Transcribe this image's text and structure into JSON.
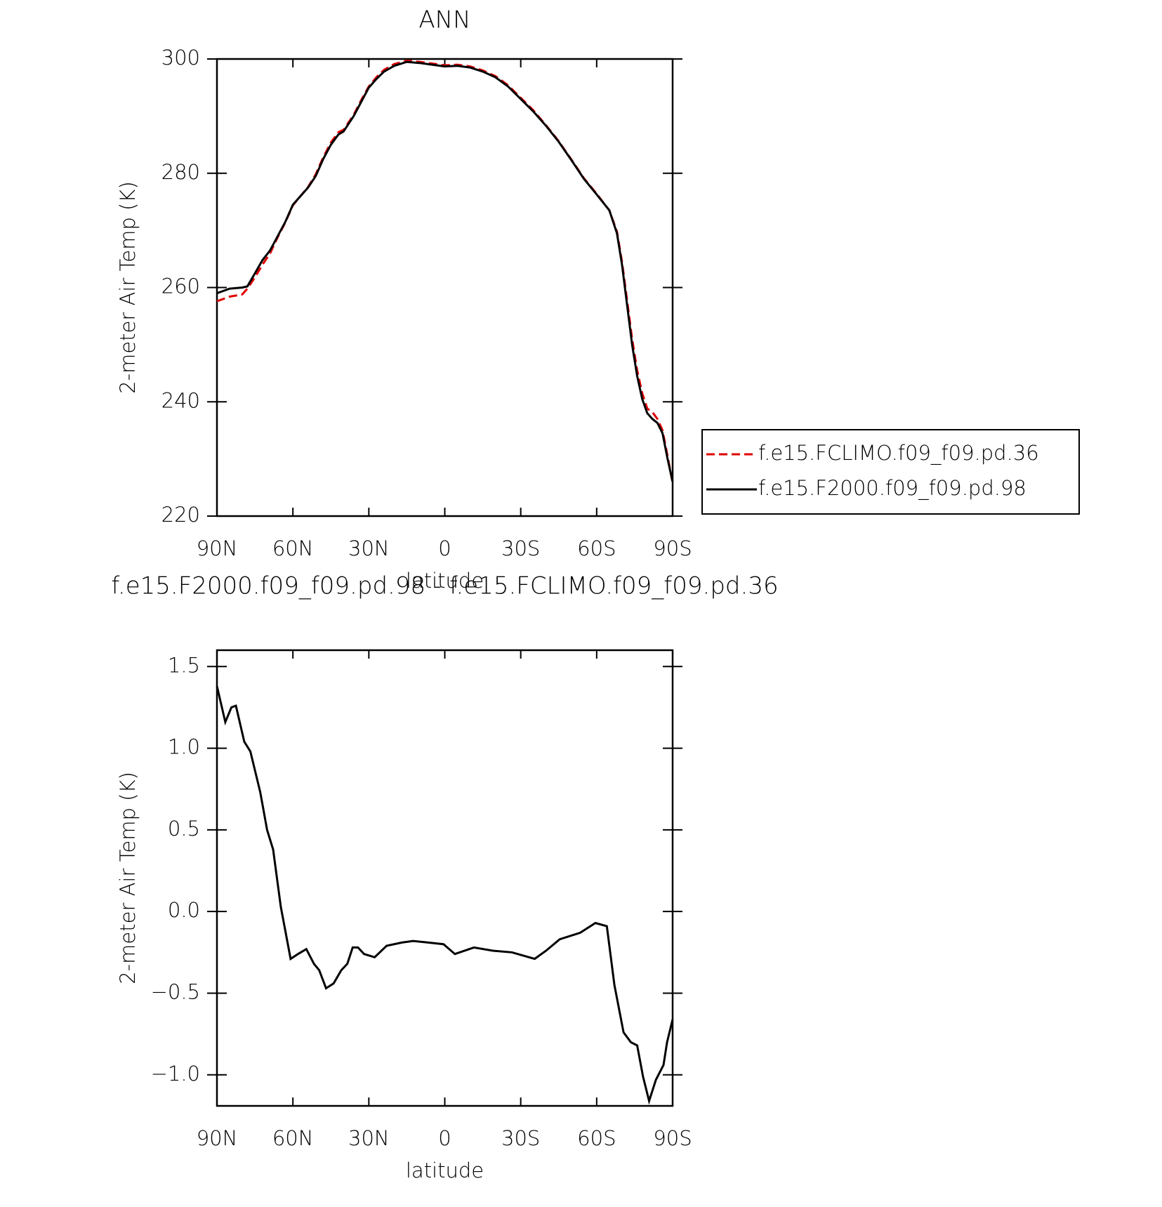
{
  "chart_data": [
    {
      "type": "line",
      "title": "ANN",
      "ylabel": "2-meter Air Temp (K)",
      "xlabel": "latitude",
      "xlim": [
        90,
        -90
      ],
      "xticks": [
        {
          "value": 90,
          "label": "90N"
        },
        {
          "value": 60,
          "label": "60N"
        },
        {
          "value": 30,
          "label": "30N"
        },
        0,
        {
          "value": -30,
          "label": "30S"
        },
        {
          "value": -60,
          "label": "60S"
        },
        {
          "value": -90,
          "label": "90S"
        }
      ],
      "ylim": [
        220,
        300
      ],
      "yticks": [
        220,
        240,
        260,
        280,
        300
      ],
      "legend": "right",
      "x": [
        90,
        85,
        80,
        78,
        75,
        72,
        69,
        66,
        63,
        60,
        57,
        54,
        51,
        48,
        45,
        42,
        40,
        36,
        33,
        30,
        27,
        24,
        20,
        15,
        10,
        5,
        0,
        -5,
        -10,
        -15,
        -20,
        -25,
        -30,
        -35,
        -40,
        -45,
        -50,
        -55,
        -60,
        -65,
        -68,
        -70,
        -72,
        -74,
        -76,
        -78,
        -80,
        -82,
        -84,
        -86,
        -88,
        -90
      ],
      "series": [
        {
          "name": "f.e15.FCLIMO.f09_f09.pd.36",
          "color": "#e00000",
          "line_style": "dashed",
          "values": [
            257.6,
            258.4,
            258.8,
            259.8,
            261.8,
            264,
            266,
            268.8,
            271.4,
            274.4,
            276,
            277.6,
            279.8,
            282.8,
            285.4,
            287.2,
            287.6,
            290.2,
            292.8,
            295.2,
            296.8,
            298.1,
            299.1,
            299.7,
            299.5,
            299.2,
            298.9,
            299,
            298.7,
            298,
            297,
            295.4,
            293.2,
            291,
            288.4,
            285.6,
            282.4,
            279.1,
            276.4,
            273.5,
            269.8,
            264.5,
            257.8,
            251,
            245.5,
            241.5,
            238.8,
            238.2,
            237,
            235,
            230.5,
            225.8
          ]
        },
        {
          "name": "f.e15.F2000.f09_f09.pd.98",
          "color": "#000000",
          "line_style": "solid",
          "values": [
            259,
            259.8,
            260,
            260.2,
            262.5,
            264.8,
            266.5,
            269,
            271.5,
            274.5,
            276,
            277.5,
            279.5,
            282.5,
            285,
            286.8,
            287.3,
            290,
            292.5,
            295,
            296.5,
            297.8,
            298.8,
            299.5,
            299.3,
            299,
            298.7,
            298.8,
            298.5,
            297.8,
            296.8,
            295.2,
            293,
            290.8,
            288.3,
            285.5,
            282.3,
            279,
            276.3,
            273.5,
            269.5,
            264,
            257,
            250,
            244.5,
            240.5,
            238,
            237,
            236.3,
            234.5,
            230,
            226
          ]
        }
      ]
    },
    {
      "type": "line",
      "title": "f.e15.F2000.f09_f09.pd.98 - f.e15.FCLIMO.f09_f09.pd.36",
      "ylabel": "2-meter Air Temp (K)",
      "xlabel": "latitude",
      "xlim": [
        90,
        -90
      ],
      "xticks": [
        {
          "value": 90,
          "label": "90N"
        },
        {
          "value": 60,
          "label": "60N"
        },
        {
          "value": 30,
          "label": "30N"
        },
        0,
        {
          "value": -30,
          "label": "30S"
        },
        {
          "value": -60,
          "label": "60S"
        },
        {
          "value": -90,
          "label": "90S"
        }
      ],
      "ylim": [
        -1.19,
        1.6
      ],
      "yticks": [
        {
          "value": -1,
          "label": "−1.0"
        },
        {
          "value": -0.5,
          "label": "−0.5"
        },
        {
          "value": 0,
          "label": "0.0"
        },
        0.5,
        {
          "value": 1,
          "label": "1.0"
        },
        1.5
      ],
      "x": [
        90,
        86.7,
        84.3,
        82.5,
        79.2,
        76.8,
        72.9,
        70.2,
        67.8,
        64.8,
        60.9,
        58,
        54.7,
        51.7,
        49.6,
        46.9,
        43.9,
        40.9,
        38.5,
        36.4,
        34.3,
        31.9,
        27.7,
        23,
        17,
        12.5,
        6.5,
        0.5,
        -4,
        -11.5,
        -19,
        -26.5,
        -35.5,
        -40,
        -45.4,
        -53.5,
        -59.5,
        -64,
        -67,
        -70.6,
        -73.5,
        -76,
        -78.3,
        -80.7,
        -83.4,
        -86.4,
        -87.8,
        -90
      ],
      "series": [
        {
          "name": "f.e15.F2000.f09_f09.pd.98 - f.e15.FCLIMO.f09_f09.pd.36",
          "color": "#000000",
          "line_style": "solid",
          "values": [
            1.38,
            1.16,
            1.25,
            1.26,
            1.04,
            0.98,
            0.73,
            0.5,
            0.38,
            0.03,
            -0.29,
            -0.26,
            -0.23,
            -0.32,
            -0.36,
            -0.47,
            -0.44,
            -0.36,
            -0.32,
            -0.22,
            -0.22,
            -0.26,
            -0.28,
            -0.21,
            -0.19,
            -0.18,
            -0.19,
            -0.2,
            -0.26,
            -0.22,
            -0.24,
            -0.25,
            -0.29,
            -0.24,
            -0.17,
            -0.13,
            -0.07,
            -0.09,
            -0.45,
            -0.74,
            -0.8,
            -0.82,
            -1.01,
            -1.16,
            -1.03,
            -0.94,
            -0.8,
            -0.66
          ]
        }
      ]
    }
  ]
}
